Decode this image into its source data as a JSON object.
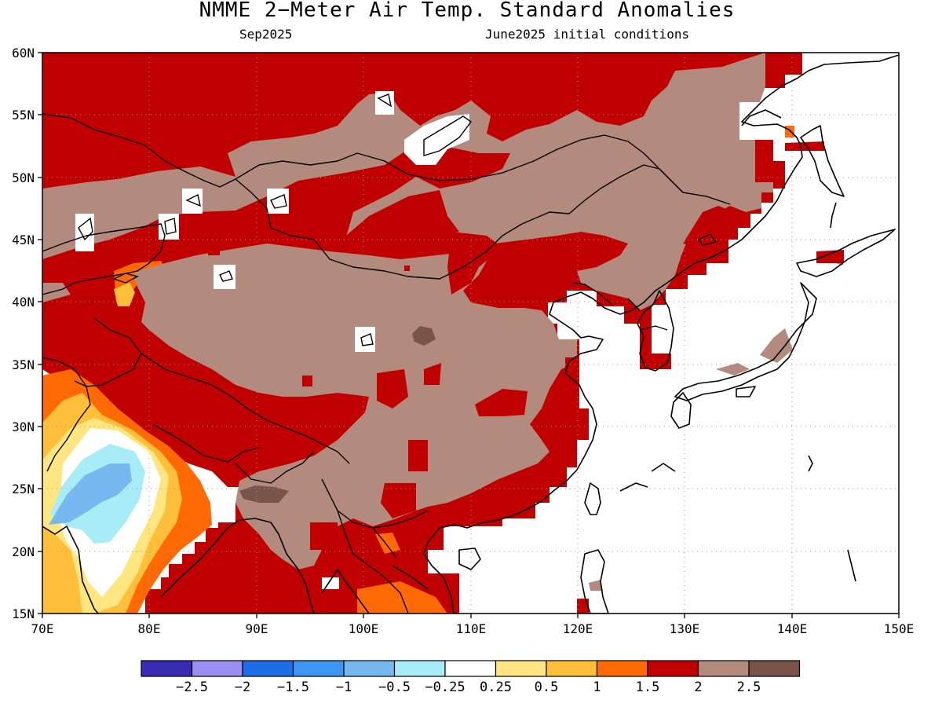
{
  "title": "NMME 2−Meter Air Temp. Standard Anomalies",
  "subtitle_left": "Sep2025",
  "subtitle_right": "June2025 initial conditions",
  "map": {
    "region": {
      "lon": [
        70,
        150
      ],
      "lat": [
        15,
        60
      ]
    },
    "lat_labels": [
      "60N",
      "55N",
      "50N",
      "45N",
      "40N",
      "35N",
      "30N",
      "25N",
      "20N",
      "15N"
    ],
    "lon_labels": [
      "70E",
      "80E",
      "90E",
      "100E",
      "110E",
      "120E",
      "130E",
      "140E",
      "150E"
    ],
    "grid": "dotted"
  },
  "colorbar": {
    "colors": [
      "#3a2bb4",
      "#9a8ff0",
      "#1f6de6",
      "#3d97f2",
      "#76b9f0",
      "#a8ecf8",
      "#ffffff",
      "#ffe680",
      "#ffbf3a",
      "#ff6a05",
      "#c00000",
      "#b38a7e",
      "#7a5448"
    ],
    "labels": [
      "−2.5",
      "−2",
      "−1.5",
      "−1",
      "−0.5",
      "−0.25",
      "0.25",
      "0.5",
      "1",
      "1.5",
      "2",
      "2.5"
    ]
  }
}
